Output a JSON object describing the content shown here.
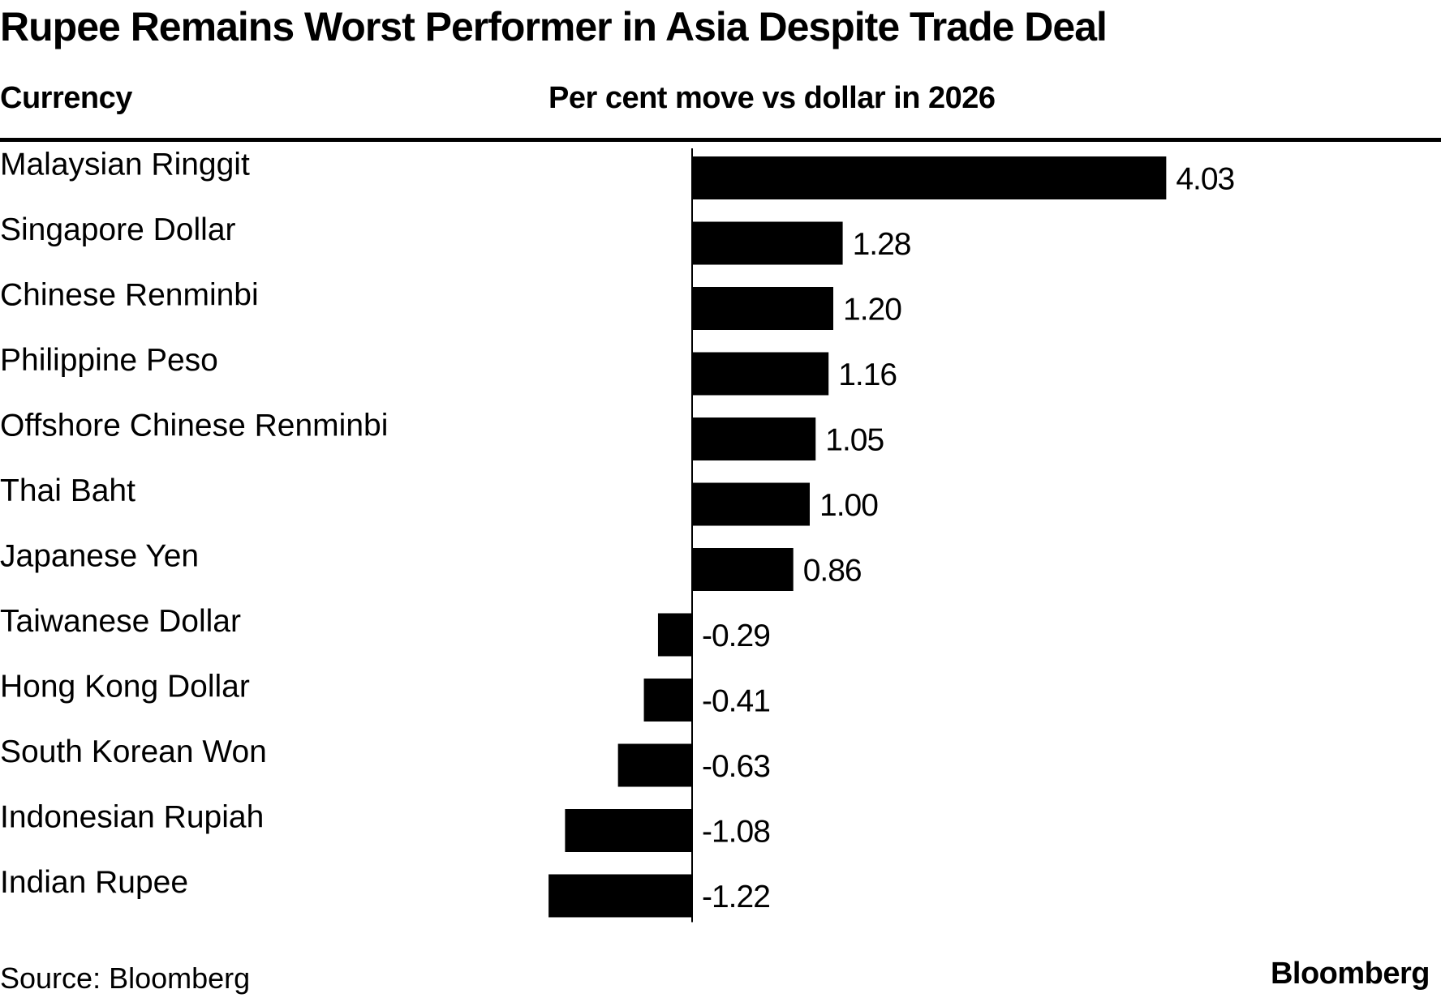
{
  "chart_data": {
    "type": "bar",
    "orientation": "horizontal",
    "title": "Rupee Remains Worst Performer in Asia Despite Trade Deal",
    "category_header": "Currency",
    "value_header": "Per cent move vs dollar in 2026",
    "categories": [
      "Malaysian Ringgit",
      "Singapore Dollar",
      "Chinese Renminbi",
      "Philippine Peso",
      "Offshore Chinese Renminbi",
      "Thai Baht",
      "Japanese Yen",
      "Taiwanese Dollar",
      "Hong Kong Dollar",
      "South Korean Won",
      "Indonesian Rupiah",
      "Indian Rupee"
    ],
    "values": [
      4.03,
      1.28,
      1.2,
      1.16,
      1.05,
      1.0,
      0.86,
      -0.29,
      -0.41,
      -0.63,
      -1.08,
      -1.22
    ],
    "value_labels": [
      "4.03",
      "1.28",
      "1.20",
      "1.16",
      "1.05",
      "1.00",
      "0.86",
      "-0.29",
      "-0.41",
      "-0.63",
      "-1.08",
      "-1.22"
    ],
    "xlim": [
      -1.22,
      4.03
    ],
    "grid": false,
    "bar_color": "#000000",
    "source": "Source: Bloomberg",
    "brand": "Bloomberg"
  }
}
